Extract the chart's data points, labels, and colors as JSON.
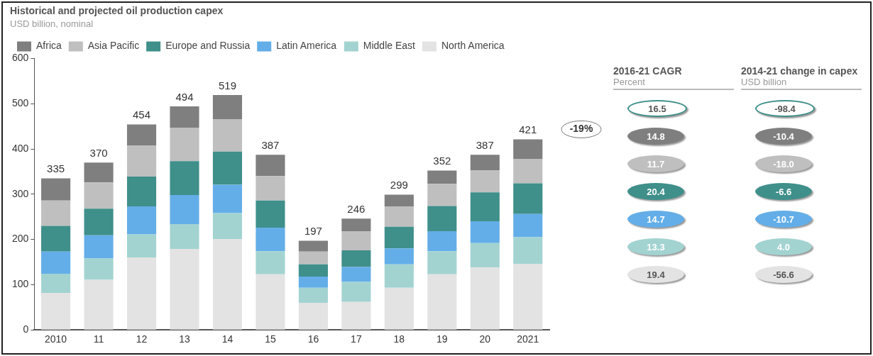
{
  "chart_data": [
    {
      "type": "bar",
      "title": "Historical and projected oil production capex",
      "subtitle": "USD billion, nominal",
      "categories": [
        "2010",
        "11",
        "12",
        "13",
        "14",
        "15",
        "16",
        "17",
        "18",
        "19",
        "20",
        "2021"
      ],
      "stacked": true,
      "series": [
        {
          "name": "North America",
          "color": "#e3e3e3",
          "values": [
            82,
            111,
            160,
            179,
            201,
            123,
            60,
            62,
            93,
            123,
            138,
            146
          ]
        },
        {
          "name": "Middle East",
          "color": "#a2d3d1",
          "values": [
            42,
            47,
            51,
            55,
            57,
            51,
            33,
            44,
            52,
            51,
            54,
            59
          ]
        },
        {
          "name": "Latin America",
          "color": "#63aee8",
          "values": [
            49,
            51,
            62,
            64,
            63,
            52,
            25,
            33,
            35,
            44,
            48,
            51
          ]
        },
        {
          "name": "Europe and Russia",
          "color": "#3f8f8a",
          "values": [
            57,
            59,
            66,
            75,
            73,
            60,
            27,
            37,
            48,
            56,
            64,
            68
          ]
        },
        {
          "name": "Asia Pacific",
          "color": "#bfbfbf",
          "values": [
            56,
            58,
            69,
            74,
            71,
            54,
            28,
            42,
            45,
            49,
            48,
            54
          ]
        },
        {
          "name": "Africa",
          "color": "#7f7f7f",
          "values": [
            49,
            44,
            46,
            47,
            54,
            47,
            24,
            28,
            26,
            29,
            35,
            43
          ]
        }
      ],
      "totals": [
        "335",
        "370",
        "454",
        "494",
        "519",
        "387",
        "197",
        "246",
        "299",
        "352",
        "387",
        "421"
      ],
      "ylim": [
        0,
        600
      ],
      "yticks": [
        0,
        100,
        200,
        300,
        400,
        500,
        600
      ],
      "grid": false,
      "legend": "top left",
      "annotations": [
        "-19%"
      ]
    },
    {
      "type": "other",
      "categories": [
        "2016-21 CAGR",
        "2014-21 change in capex"
      ],
      "annotations": [
        "Percent",
        "USD billion"
      ],
      "series": [
        {
          "values": [
            16.5,
            -98.4
          ],
          "value_labels": [
            "16.5",
            "-98.4"
          ]
        },
        {
          "color": "#7f7f7f",
          "values": [
            14.8,
            -10.4
          ],
          "value_labels": [
            "14.8",
            "-10.4"
          ]
        },
        {
          "color": "#bfbfbf",
          "values": [
            11.7,
            -18.0
          ],
          "value_labels": [
            "11.7",
            "-18.0"
          ]
        },
        {
          "color": "#3f8f8a",
          "values": [
            20.4,
            -6.6
          ],
          "value_labels": [
            "20.4",
            "-6.6"
          ]
        },
        {
          "color": "#63aee8",
          "values": [
            14.7,
            -10.7
          ],
          "value_labels": [
            "14.7",
            "-10.7"
          ]
        },
        {
          "color": "#a2d3d1",
          "values": [
            13.3,
            4.0
          ],
          "value_labels": [
            "13.3",
            "4.0"
          ]
        },
        {
          "color": "#e3e3e3",
          "values": [
            19.4,
            -56.6
          ],
          "value_labels": [
            "19.4",
            "-56.6"
          ]
        }
      ]
    }
  ]
}
